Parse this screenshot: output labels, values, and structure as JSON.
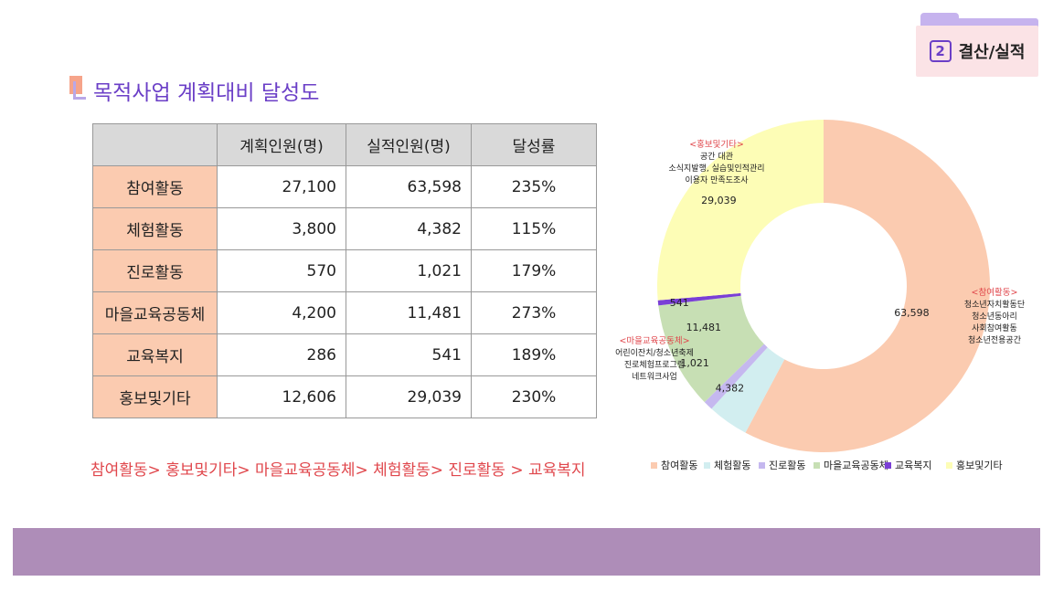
{
  "section_badge": {
    "number": "2",
    "label": "결산/실적"
  },
  "title": "목적사업 계획대비 달성도",
  "table": {
    "headers": [
      "",
      "계획인원(명)",
      "실적인원(명)",
      "달성률"
    ],
    "rows": [
      {
        "name": "참여활동",
        "plan": "27,100",
        "actual": "63,598",
        "rate": "235%"
      },
      {
        "name": "체험활동",
        "plan": "3,800",
        "actual": "4,382",
        "rate": "115%"
      },
      {
        "name": "진로활동",
        "plan": "570",
        "actual": "1,021",
        "rate": "179%"
      },
      {
        "name": "마을교육공동체",
        "plan": "4,200",
        "actual": "11,481",
        "rate": "273%"
      },
      {
        "name": "교육복지",
        "plan": "286",
        "actual": "541",
        "rate": "189%"
      },
      {
        "name": "홍보및기타",
        "plan": "12,606",
        "actual": "29,039",
        "rate": "230%"
      }
    ]
  },
  "ranking_text": "참여활동> 홍보및기타> 마을교육공동체> 체험활동> 진로활동 > 교육복지",
  "chart_data": {
    "type": "pie",
    "variant": "donut",
    "categories": [
      "참여활동",
      "체험활동",
      "진로활동",
      "마을교육공동체",
      "교육복지",
      "홍보및기타"
    ],
    "values": [
      63598,
      4382,
      1021,
      11481,
      541,
      29039
    ],
    "value_labels": [
      "63,598",
      "4,382",
      "1,021",
      "11,481",
      "541",
      "29,039"
    ],
    "colors": [
      "#fbcbb0",
      "#d2eef0",
      "#c5b8ef",
      "#c7dfb4",
      "#7a3fd6",
      "#fdfdb6"
    ],
    "legend_position": "bottom",
    "annotations": [
      {
        "category": "참여활동",
        "heading": "<참여활동>",
        "lines": [
          "청소년자치활동단",
          "청소년동아리",
          "사회참여활동",
          "청소년전용공간"
        ]
      },
      {
        "category": "마을교육공동체",
        "heading": "<마을교육공동체>",
        "lines": [
          "어린이잔치/청소년축제",
          "진로체험프로그램",
          "네트워크사업"
        ]
      },
      {
        "category": "홍보및기타",
        "heading": "<홍보및기타>",
        "lines": [
          "공간 대관",
          "소식지발행, 실습및인적관리",
          "이용자 만족도조사"
        ]
      }
    ]
  }
}
